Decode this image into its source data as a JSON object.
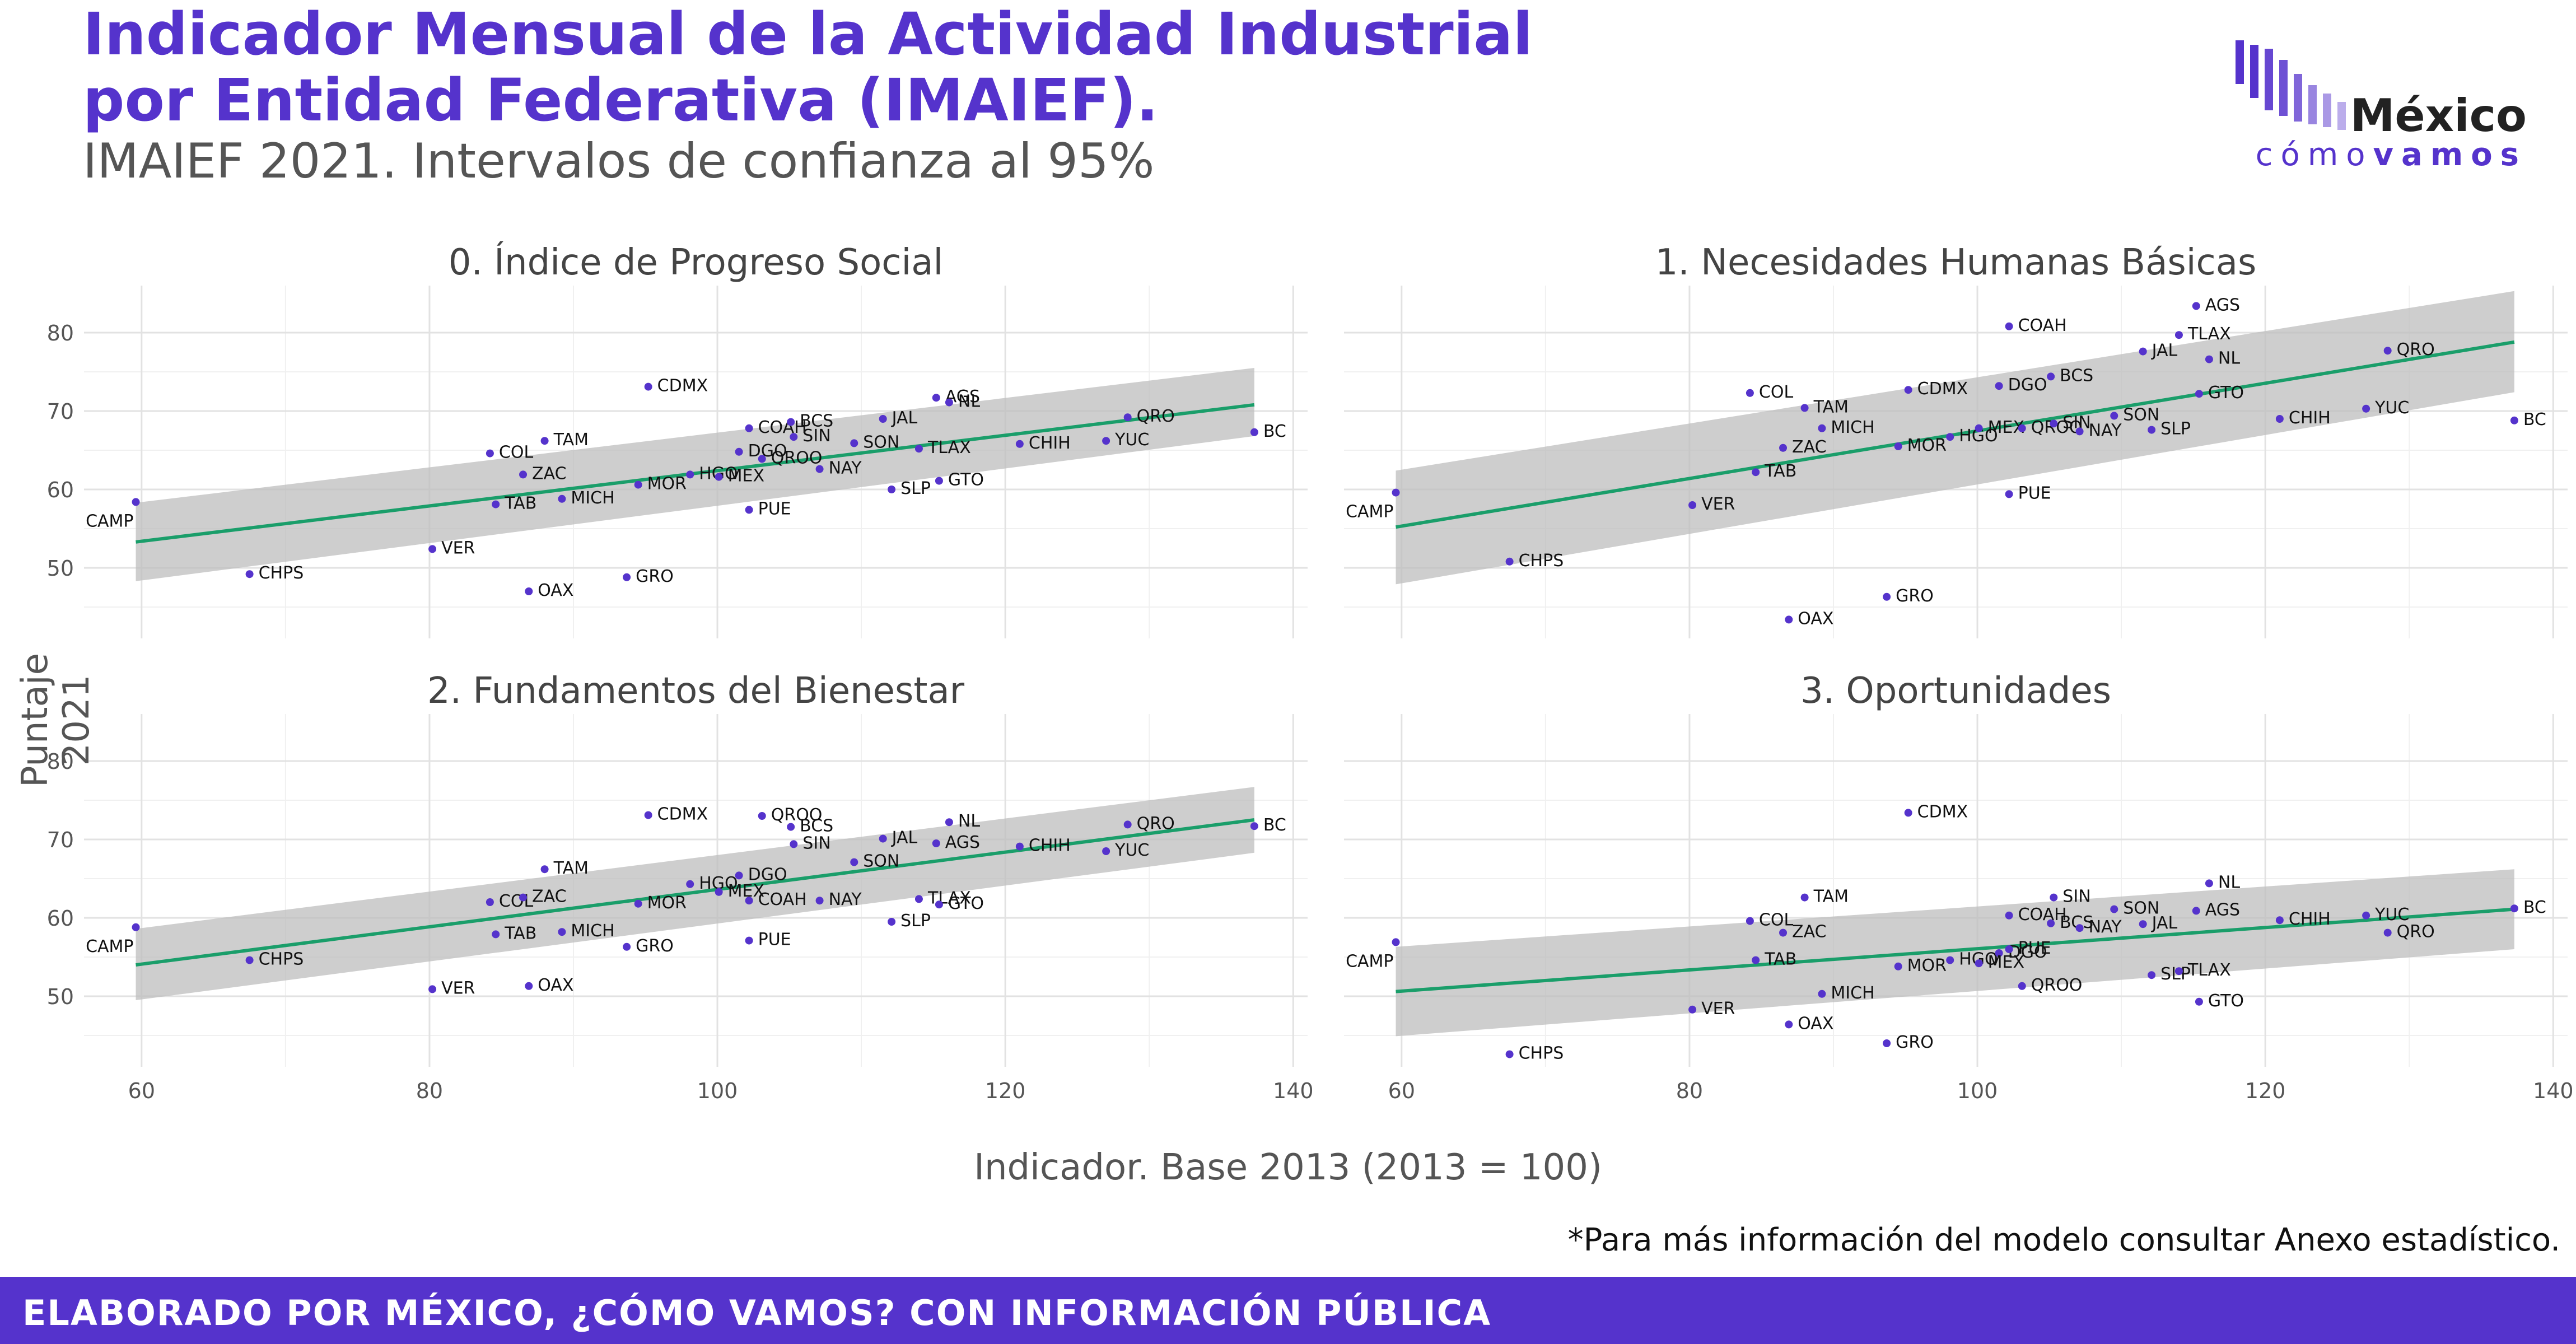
{
  "header": {
    "title_line1": "Indicador Mensual de la Actividad Industrial",
    "title_line2": "por Entidad Federativa (IMAIEF).",
    "subtitle": "IMAIEF 2021. Intervalos de confianza al 95%"
  },
  "logo": {
    "word1": "México",
    "word2a": "cómo",
    "word2b": "vamos"
  },
  "axes": {
    "ylabel": "Puntaje 2021",
    "xlabel": "Indicador. Base 2013 (2013 = 100)"
  },
  "note": "*Para más información del modelo consultar Anexo estadístico.",
  "footer": "ELABORADO POR MÉXICO, ¿CÓMO VAMOS? CON INFORMACIÓN PÚBLICA",
  "colors": {
    "accent": "#5533cc",
    "points": "#5533cc",
    "fit_line": "#1a9e6a",
    "ribbon": "#bdbdbd"
  },
  "chart_data": [
    {
      "type": "scatter",
      "title": "0. Índice de Progreso Social",
      "xlim": [
        56,
        141
      ],
      "ylim": [
        41,
        86
      ],
      "xticks": [
        60,
        80,
        100,
        120,
        140
      ],
      "yticks": [
        50,
        60,
        70,
        80
      ],
      "fit": {
        "x": [
          59.6,
          137.3
        ],
        "y": [
          53.3,
          70.8
        ],
        "lower": [
          48.3,
          66.8
        ],
        "upper": [
          58.3,
          75.5
        ]
      },
      "points": [
        {
          "label": "CAMP",
          "x": 59.6,
          "y": 58.4
        },
        {
          "label": "CHPS",
          "x": 67.5,
          "y": 49.2
        },
        {
          "label": "VER",
          "x": 80.2,
          "y": 52.4
        },
        {
          "label": "COL",
          "x": 84.2,
          "y": 64.6
        },
        {
          "label": "TAM",
          "x": 88.0,
          "y": 66.2
        },
        {
          "label": "TAB",
          "x": 84.6,
          "y": 58.1
        },
        {
          "label": "ZAC",
          "x": 86.5,
          "y": 61.9
        },
        {
          "label": "MICH",
          "x": 89.2,
          "y": 58.8
        },
        {
          "label": "OAX",
          "x": 86.9,
          "y": 47.0
        },
        {
          "label": "GRO",
          "x": 93.7,
          "y": 48.8
        },
        {
          "label": "MOR",
          "x": 94.5,
          "y": 60.6
        },
        {
          "label": "HGO",
          "x": 98.1,
          "y": 61.9
        },
        {
          "label": "CDMX",
          "x": 95.2,
          "y": 73.1
        },
        {
          "label": "COAH",
          "x": 102.2,
          "y": 67.8
        },
        {
          "label": "DGO",
          "x": 101.5,
          "y": 64.8
        },
        {
          "label": "MEX",
          "x": 100.1,
          "y": 61.6
        },
        {
          "label": "PUE",
          "x": 102.2,
          "y": 57.4
        },
        {
          "label": "QROO",
          "x": 103.1,
          "y": 63.9
        },
        {
          "label": "BCS",
          "x": 105.1,
          "y": 68.6
        },
        {
          "label": "SIN",
          "x": 105.3,
          "y": 66.7
        },
        {
          "label": "NAY",
          "x": 107.1,
          "y": 62.6
        },
        {
          "label": "SON",
          "x": 109.5,
          "y": 65.9
        },
        {
          "label": "JAL",
          "x": 111.5,
          "y": 69.0
        },
        {
          "label": "SLP",
          "x": 112.1,
          "y": 60.0
        },
        {
          "label": "AGS",
          "x": 115.2,
          "y": 71.7
        },
        {
          "label": "NL",
          "x": 116.1,
          "y": 71.1
        },
        {
          "label": "TLAX",
          "x": 114.0,
          "y": 65.2
        },
        {
          "label": "GTO",
          "x": 115.4,
          "y": 61.1
        },
        {
          "label": "CHIH",
          "x": 121.0,
          "y": 65.8
        },
        {
          "label": "YUC",
          "x": 127.0,
          "y": 66.2
        },
        {
          "label": "QRO",
          "x": 128.5,
          "y": 69.2
        },
        {
          "label": "BC",
          "x": 137.3,
          "y": 67.3
        }
      ]
    },
    {
      "type": "scatter",
      "title": "1. Necesidades Humanas Básicas",
      "xlim": [
        56,
        141
      ],
      "ylim": [
        41,
        86
      ],
      "xticks": [
        60,
        80,
        100,
        120,
        140
      ],
      "yticks": [
        50,
        60,
        70,
        80
      ],
      "fit": {
        "x": [
          59.6,
          137.3
        ],
        "y": [
          55.2,
          78.8
        ],
        "lower": [
          47.9,
          72.4
        ],
        "upper": [
          62.4,
          85.3
        ]
      },
      "points": [
        {
          "label": "CAMP",
          "x": 59.6,
          "y": 59.6
        },
        {
          "label": "CHPS",
          "x": 67.5,
          "y": 50.8
        },
        {
          "label": "VER",
          "x": 80.2,
          "y": 58.0
        },
        {
          "label": "COL",
          "x": 84.2,
          "y": 72.3
        },
        {
          "label": "TAM",
          "x": 88.0,
          "y": 70.4
        },
        {
          "label": "TAB",
          "x": 84.6,
          "y": 62.2
        },
        {
          "label": "ZAC",
          "x": 86.5,
          "y": 65.3
        },
        {
          "label": "MICH",
          "x": 89.2,
          "y": 67.8
        },
        {
          "label": "OAX",
          "x": 86.9,
          "y": 43.4
        },
        {
          "label": "GRO",
          "x": 93.7,
          "y": 46.3
        },
        {
          "label": "MOR",
          "x": 94.5,
          "y": 65.5
        },
        {
          "label": "HGO",
          "x": 98.1,
          "y": 66.7
        },
        {
          "label": "CDMX",
          "x": 95.2,
          "y": 72.7
        },
        {
          "label": "COAH",
          "x": 102.2,
          "y": 80.8
        },
        {
          "label": "DGO",
          "x": 101.5,
          "y": 73.2
        },
        {
          "label": "MEX",
          "x": 100.1,
          "y": 67.8
        },
        {
          "label": "PUE",
          "x": 102.2,
          "y": 59.4
        },
        {
          "label": "QROO",
          "x": 103.1,
          "y": 67.8
        },
        {
          "label": "BCS",
          "x": 105.1,
          "y": 74.4
        },
        {
          "label": "SIN",
          "x": 105.3,
          "y": 68.4
        },
        {
          "label": "NAY",
          "x": 107.1,
          "y": 67.4
        },
        {
          "label": "SON",
          "x": 109.5,
          "y": 69.4
        },
        {
          "label": "JAL",
          "x": 111.5,
          "y": 77.6
        },
        {
          "label": "SLP",
          "x": 112.1,
          "y": 67.6
        },
        {
          "label": "AGS",
          "x": 115.2,
          "y": 83.4
        },
        {
          "label": "NL",
          "x": 116.1,
          "y": 76.6
        },
        {
          "label": "TLAX",
          "x": 114.0,
          "y": 79.7
        },
        {
          "label": "GTO",
          "x": 115.4,
          "y": 72.2
        },
        {
          "label": "CHIH",
          "x": 121.0,
          "y": 69.0
        },
        {
          "label": "YUC",
          "x": 127.0,
          "y": 70.3
        },
        {
          "label": "QRO",
          "x": 128.5,
          "y": 77.7
        },
        {
          "label": "BC",
          "x": 137.3,
          "y": 68.8
        }
      ]
    },
    {
      "type": "scatter",
      "title": "2. Fundamentos del Bienestar",
      "xlim": [
        56,
        141
      ],
      "ylim": [
        41,
        86
      ],
      "xticks": [
        60,
        80,
        100,
        120,
        140
      ],
      "yticks": [
        50,
        60,
        70,
        80
      ],
      "xticklabels": [
        "60",
        "80",
        "100",
        "120",
        "140"
      ],
      "fit": {
        "x": [
          59.6,
          137.3
        ],
        "y": [
          54.0,
          72.5
        ],
        "lower": [
          49.5,
          68.3
        ],
        "upper": [
          58.6,
          76.7
        ]
      },
      "points": [
        {
          "label": "CAMP",
          "x": 59.6,
          "y": 58.8
        },
        {
          "label": "CHPS",
          "x": 67.5,
          "y": 54.6
        },
        {
          "label": "VER",
          "x": 80.2,
          "y": 50.9
        },
        {
          "label": "COL",
          "x": 84.2,
          "y": 62.0
        },
        {
          "label": "TAM",
          "x": 88.0,
          "y": 66.2
        },
        {
          "label": "TAB",
          "x": 84.6,
          "y": 57.9
        },
        {
          "label": "ZAC",
          "x": 86.5,
          "y": 62.6
        },
        {
          "label": "MICH",
          "x": 89.2,
          "y": 58.2
        },
        {
          "label": "OAX",
          "x": 86.9,
          "y": 51.3
        },
        {
          "label": "GRO",
          "x": 93.7,
          "y": 56.3
        },
        {
          "label": "MOR",
          "x": 94.5,
          "y": 61.8
        },
        {
          "label": "HGO",
          "x": 98.1,
          "y": 64.3
        },
        {
          "label": "CDMX",
          "x": 95.2,
          "y": 73.1
        },
        {
          "label": "COAH",
          "x": 102.2,
          "y": 62.2
        },
        {
          "label": "DGO",
          "x": 101.5,
          "y": 65.4
        },
        {
          "label": "MEX",
          "x": 100.1,
          "y": 63.3
        },
        {
          "label": "PUE",
          "x": 102.2,
          "y": 57.1
        },
        {
          "label": "QROO",
          "x": 103.1,
          "y": 73.0
        },
        {
          "label": "BCS",
          "x": 105.1,
          "y": 71.6
        },
        {
          "label": "SIN",
          "x": 105.3,
          "y": 69.4
        },
        {
          "label": "NAY",
          "x": 107.1,
          "y": 62.2
        },
        {
          "label": "SON",
          "x": 109.5,
          "y": 67.1
        },
        {
          "label": "JAL",
          "x": 111.5,
          "y": 70.1
        },
        {
          "label": "SLP",
          "x": 112.1,
          "y": 59.5
        },
        {
          "label": "AGS",
          "x": 115.2,
          "y": 69.5
        },
        {
          "label": "NL",
          "x": 116.1,
          "y": 72.2
        },
        {
          "label": "TLAX",
          "x": 114.0,
          "y": 62.4
        },
        {
          "label": "GTO",
          "x": 115.4,
          "y": 61.7
        },
        {
          "label": "CHIH",
          "x": 121.0,
          "y": 69.1
        },
        {
          "label": "YUC",
          "x": 127.0,
          "y": 68.5
        },
        {
          "label": "QRO",
          "x": 128.5,
          "y": 71.9
        },
        {
          "label": "BC",
          "x": 137.3,
          "y": 71.7
        }
      ]
    },
    {
      "type": "scatter",
      "title": "3. Oportunidades",
      "xlim": [
        56,
        141
      ],
      "ylim": [
        41,
        86
      ],
      "xticks": [
        60,
        80,
        100,
        120,
        140
      ],
      "yticks": [
        50,
        60,
        70,
        80
      ],
      "xticklabels": [
        "60",
        "80",
        "100",
        "120",
        "140"
      ],
      "fit": {
        "x": [
          59.6,
          137.3
        ],
        "y": [
          50.6,
          61.1
        ],
        "lower": [
          44.9,
          56.0
        ],
        "upper": [
          56.3,
          66.2
        ]
      },
      "points": [
        {
          "label": "CAMP",
          "x": 59.6,
          "y": 56.9
        },
        {
          "label": "CHPS",
          "x": 67.5,
          "y": 42.6
        },
        {
          "label": "VER",
          "x": 80.2,
          "y": 48.3
        },
        {
          "label": "COL",
          "x": 84.2,
          "y": 59.6
        },
        {
          "label": "TAM",
          "x": 88.0,
          "y": 62.6
        },
        {
          "label": "TAB",
          "x": 84.6,
          "y": 54.6
        },
        {
          "label": "ZAC",
          "x": 86.5,
          "y": 58.1
        },
        {
          "label": "MICH",
          "x": 89.2,
          "y": 50.3
        },
        {
          "label": "OAX",
          "x": 86.9,
          "y": 46.4
        },
        {
          "label": "GRO",
          "x": 93.7,
          "y": 44.0
        },
        {
          "label": "MOR",
          "x": 94.5,
          "y": 53.8
        },
        {
          "label": "HGO",
          "x": 98.1,
          "y": 54.6
        },
        {
          "label": "CDMX",
          "x": 95.2,
          "y": 73.4
        },
        {
          "label": "COAH",
          "x": 102.2,
          "y": 60.3
        },
        {
          "label": "DGO",
          "x": 101.5,
          "y": 55.5
        },
        {
          "label": "MEX",
          "x": 100.1,
          "y": 54.2
        },
        {
          "label": "PUE",
          "x": 102.2,
          "y": 56.0
        },
        {
          "label": "QROO",
          "x": 103.1,
          "y": 51.3
        },
        {
          "label": "BCS",
          "x": 105.1,
          "y": 59.3
        },
        {
          "label": "SIN",
          "x": 105.3,
          "y": 62.6
        },
        {
          "label": "NAY",
          "x": 107.1,
          "y": 58.7
        },
        {
          "label": "SON",
          "x": 109.5,
          "y": 61.1
        },
        {
          "label": "JAL",
          "x": 111.5,
          "y": 59.2
        },
        {
          "label": "SLP",
          "x": 112.1,
          "y": 52.7
        },
        {
          "label": "AGS",
          "x": 115.2,
          "y": 60.9
        },
        {
          "label": "NL",
          "x": 116.1,
          "y": 64.4
        },
        {
          "label": "TLAX",
          "x": 114.0,
          "y": 53.2
        },
        {
          "label": "GTO",
          "x": 115.4,
          "y": 49.3
        },
        {
          "label": "CHIH",
          "x": 121.0,
          "y": 59.7
        },
        {
          "label": "YUC",
          "x": 127.0,
          "y": 60.3
        },
        {
          "label": "QRO",
          "x": 128.5,
          "y": 58.1
        },
        {
          "label": "BC",
          "x": 137.3,
          "y": 61.2
        }
      ]
    }
  ]
}
